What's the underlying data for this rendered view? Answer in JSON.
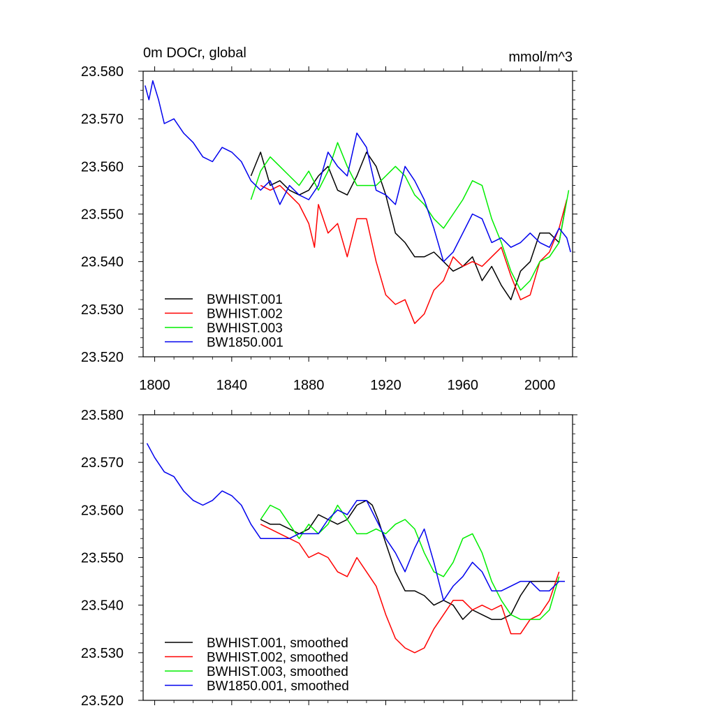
{
  "chart_data": [
    {
      "type": "line",
      "title": "0m DOCr, global",
      "units": "mmol/m^3",
      "xlabel": "",
      "ylabel": "",
      "xlim": [
        1794,
        2017
      ],
      "ylim": [
        23.52,
        23.58
      ],
      "xticks": [
        1800,
        1840,
        1880,
        1920,
        1960,
        2000
      ],
      "xtick_labels": [
        "1800",
        "1840",
        "1880",
        "1920",
        "1960",
        "2000"
      ],
      "yticks": [
        23.52,
        23.53,
        23.54,
        23.55,
        23.56,
        23.57,
        23.58
      ],
      "ytick_labels": [
        "23.520",
        "23.530",
        "23.540",
        "23.550",
        "23.560",
        "23.570",
        "23.580"
      ],
      "legend_position": "bottom-left",
      "series": [
        {
          "name": "BWHIST.001",
          "color": "#000000",
          "x": [
            1850,
            1855,
            1860,
            1865,
            1870,
            1875,
            1880,
            1885,
            1890,
            1895,
            1900,
            1905,
            1910,
            1915,
            1920,
            1925,
            1930,
            1935,
            1940,
            1945,
            1950,
            1955,
            1960,
            1965,
            1970,
            1975,
            1980,
            1985,
            1990,
            1995,
            2000,
            2005,
            2010,
            2014
          ],
          "y": [
            23.558,
            23.563,
            23.556,
            23.557,
            23.555,
            23.554,
            23.555,
            23.558,
            23.56,
            23.555,
            23.554,
            23.558,
            23.563,
            23.56,
            23.554,
            23.546,
            23.544,
            23.541,
            23.541,
            23.542,
            23.54,
            23.538,
            23.539,
            23.541,
            23.536,
            23.539,
            23.535,
            23.532,
            23.538,
            23.54,
            23.546,
            23.546,
            23.544,
            23.553
          ]
        },
        {
          "name": "BWHIST.002",
          "color": "#ff0000",
          "x": [
            1855,
            1860,
            1865,
            1870,
            1875,
            1880,
            1883,
            1885,
            1890,
            1895,
            1900,
            1905,
            1910,
            1915,
            1920,
            1925,
            1930,
            1935,
            1940,
            1945,
            1950,
            1955,
            1960,
            1965,
            1970,
            1975,
            1980,
            1985,
            1990,
            1995,
            2000,
            2005,
            2010,
            2014
          ],
          "y": [
            23.556,
            23.555,
            23.556,
            23.554,
            23.552,
            23.548,
            23.543,
            23.552,
            23.546,
            23.548,
            23.541,
            23.549,
            23.549,
            23.54,
            23.533,
            23.531,
            23.532,
            23.527,
            23.529,
            23.534,
            23.536,
            23.541,
            23.539,
            23.54,
            23.539,
            23.541,
            23.543,
            23.537,
            23.532,
            23.533,
            23.54,
            23.542,
            23.547,
            23.553
          ]
        },
        {
          "name": "BWHIST.003",
          "color": "#00ee00",
          "x": [
            1850,
            1855,
            1860,
            1865,
            1870,
            1875,
            1880,
            1885,
            1890,
            1895,
            1900,
            1905,
            1910,
            1915,
            1920,
            1925,
            1930,
            1935,
            1940,
            1945,
            1950,
            1955,
            1960,
            1965,
            1970,
            1975,
            1980,
            1985,
            1990,
            1995,
            2000,
            2005,
            2010,
            2015
          ],
          "y": [
            23.553,
            23.559,
            23.562,
            23.56,
            23.558,
            23.556,
            23.559,
            23.555,
            23.559,
            23.565,
            23.56,
            23.556,
            23.556,
            23.556,
            23.558,
            23.56,
            23.558,
            23.554,
            23.552,
            23.549,
            23.547,
            23.55,
            23.553,
            23.557,
            23.556,
            23.549,
            23.544,
            23.538,
            23.534,
            23.536,
            23.54,
            23.541,
            23.544,
            23.555
          ]
        },
        {
          "name": "BW1850.001",
          "color": "#0000ee",
          "x": [
            1795,
            1797,
            1799,
            1802,
            1805,
            1810,
            1815,
            1820,
            1825,
            1830,
            1835,
            1840,
            1845,
            1850,
            1855,
            1860,
            1865,
            1870,
            1875,
            1880,
            1885,
            1890,
            1895,
            1900,
            1905,
            1910,
            1915,
            1920,
            1925,
            1930,
            1935,
            1940,
            1945,
            1950,
            1955,
            1960,
            1965,
            1970,
            1975,
            1980,
            1985,
            1990,
            1995,
            2000,
            2005,
            2010,
            2014,
            2016
          ],
          "y": [
            23.577,
            23.574,
            23.578,
            23.574,
            23.569,
            23.57,
            23.567,
            23.565,
            23.562,
            23.561,
            23.564,
            23.563,
            23.561,
            23.557,
            23.555,
            23.557,
            23.552,
            23.556,
            23.554,
            23.553,
            23.556,
            23.563,
            23.56,
            23.558,
            23.567,
            23.564,
            23.555,
            23.554,
            23.552,
            23.56,
            23.557,
            23.553,
            23.547,
            23.54,
            23.542,
            23.546,
            23.55,
            23.549,
            23.544,
            23.545,
            23.543,
            23.544,
            23.546,
            23.544,
            23.543,
            23.547,
            23.545,
            23.542
          ]
        }
      ]
    },
    {
      "type": "line",
      "title": "",
      "xlabel": "",
      "ylabel": "",
      "xlim": [
        1794,
        2017
      ],
      "ylim": [
        23.52,
        23.58
      ],
      "xticks": [
        1800,
        1840,
        1880,
        1920,
        1960,
        2000
      ],
      "yticks": [
        23.52,
        23.53,
        23.54,
        23.55,
        23.56,
        23.57,
        23.58
      ],
      "ytick_labels": [
        "23.520",
        "23.530",
        "23.540",
        "23.550",
        "23.560",
        "23.570",
        "23.580"
      ],
      "legend_position": "bottom-left",
      "series": [
        {
          "name": "BWHIST.001, smoothed",
          "color": "#000000",
          "x": [
            1855,
            1860,
            1865,
            1870,
            1875,
            1880,
            1885,
            1890,
            1895,
            1900,
            1905,
            1910,
            1913,
            1916,
            1920,
            1925,
            1930,
            1935,
            1940,
            1945,
            1950,
            1955,
            1960,
            1965,
            1970,
            1975,
            1980,
            1985,
            1990,
            1995,
            2000,
            2005,
            2010
          ],
          "y": [
            23.558,
            23.557,
            23.557,
            23.556,
            23.555,
            23.556,
            23.559,
            23.558,
            23.557,
            23.558,
            23.561,
            23.562,
            23.561,
            23.558,
            23.553,
            23.547,
            23.543,
            23.543,
            23.542,
            23.54,
            23.541,
            23.54,
            23.537,
            23.539,
            23.538,
            23.537,
            23.537,
            23.538,
            23.542,
            23.545,
            23.545,
            23.545,
            23.545
          ]
        },
        {
          "name": "BWHIST.002, smoothed",
          "color": "#ff0000",
          "x": [
            1855,
            1860,
            1865,
            1870,
            1875,
            1880,
            1885,
            1890,
            1895,
            1900,
            1905,
            1910,
            1915,
            1920,
            1925,
            1930,
            1935,
            1940,
            1945,
            1950,
            1955,
            1960,
            1965,
            1970,
            1975,
            1980,
            1985,
            1990,
            1995,
            2000,
            2005,
            2010
          ],
          "y": [
            23.557,
            23.556,
            23.555,
            23.554,
            23.553,
            23.55,
            23.551,
            23.55,
            23.547,
            23.546,
            23.55,
            23.547,
            23.544,
            23.538,
            23.533,
            23.531,
            23.53,
            23.531,
            23.535,
            23.538,
            23.541,
            23.541,
            23.539,
            23.54,
            23.539,
            23.54,
            23.534,
            23.534,
            23.537,
            23.538,
            23.541,
            23.547
          ]
        },
        {
          "name": "BWHIST.003, smoothed",
          "color": "#00ee00",
          "x": [
            1855,
            1860,
            1865,
            1870,
            1875,
            1880,
            1885,
            1890,
            1895,
            1900,
            1905,
            1910,
            1915,
            1920,
            1925,
            1930,
            1935,
            1940,
            1945,
            1950,
            1955,
            1960,
            1965,
            1970,
            1975,
            1980,
            1985,
            1990,
            1995,
            2000,
            2005,
            2010
          ],
          "y": [
            23.558,
            23.561,
            23.56,
            23.557,
            23.554,
            23.557,
            23.555,
            23.557,
            23.561,
            23.558,
            23.555,
            23.555,
            23.556,
            23.555,
            23.557,
            23.558,
            23.556,
            23.551,
            23.547,
            23.546,
            23.549,
            23.554,
            23.555,
            23.551,
            23.545,
            23.541,
            23.538,
            23.537,
            23.537,
            23.537,
            23.539,
            23.546
          ]
        },
        {
          "name": "BW1850.001, smoothed",
          "color": "#0000ee",
          "x": [
            1796,
            1800,
            1805,
            1810,
            1815,
            1820,
            1825,
            1830,
            1835,
            1840,
            1845,
            1850,
            1855,
            1860,
            1865,
            1870,
            1875,
            1880,
            1885,
            1890,
            1895,
            1900,
            1905,
            1910,
            1915,
            1920,
            1925,
            1930,
            1935,
            1940,
            1945,
            1950,
            1955,
            1960,
            1965,
            1970,
            1975,
            1980,
            1985,
            1990,
            1995,
            2000,
            2005,
            2010,
            2013
          ],
          "y": [
            23.574,
            23.571,
            23.568,
            23.567,
            23.564,
            23.562,
            23.561,
            23.562,
            23.564,
            23.563,
            23.561,
            23.557,
            23.554,
            23.554,
            23.554,
            23.554,
            23.555,
            23.555,
            23.555,
            23.558,
            23.56,
            23.559,
            23.562,
            23.562,
            23.558,
            23.554,
            23.551,
            23.547,
            23.552,
            23.556,
            23.549,
            23.541,
            23.544,
            23.546,
            23.549,
            23.547,
            23.543,
            23.543,
            23.544,
            23.545,
            23.545,
            23.543,
            23.543,
            23.545,
            23.545
          ]
        }
      ]
    }
  ]
}
